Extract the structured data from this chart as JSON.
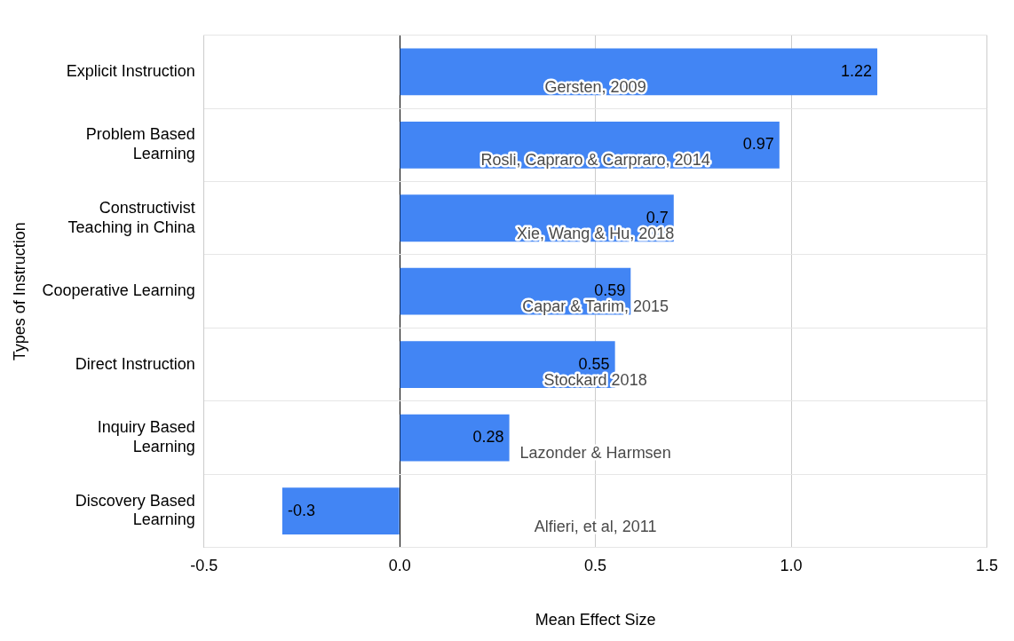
{
  "chart_data": {
    "type": "bar",
    "orientation": "horizontal",
    "xlabel": "Mean Effect Size",
    "ylabel": "Types of Instruction",
    "categories": [
      "Explicit Instruction",
      "Problem Based Learning",
      "Constructivist Teaching in China",
      "Cooperative Learning",
      "Direct Instruction",
      "Inquiry Based Learning",
      "Discovery Based Learning"
    ],
    "values": [
      1.22,
      0.97,
      0.7,
      0.59,
      0.55,
      0.28,
      -0.3
    ],
    "color": "#4285f4",
    "data_labels": true,
    "xlim": [
      -0.5,
      1.5
    ],
    "xticks": [
      -0.5,
      {
        "value": 0,
        "label": "0.0"
      },
      0.5,
      {
        "value": 1,
        "label": "1.0"
      },
      1.5
    ],
    "grid": true,
    "legend": false,
    "annotations": [
      "Gersten, 2009",
      "Rosli, Capraro & Carpraro, 2014",
      "Xie, Wang & Hu, 2018",
      "Capar & Tarim, 2015",
      "Stockard 2018",
      "Lazonder & Harmsen",
      "Alfieri, et al, 2011"
    ]
  }
}
